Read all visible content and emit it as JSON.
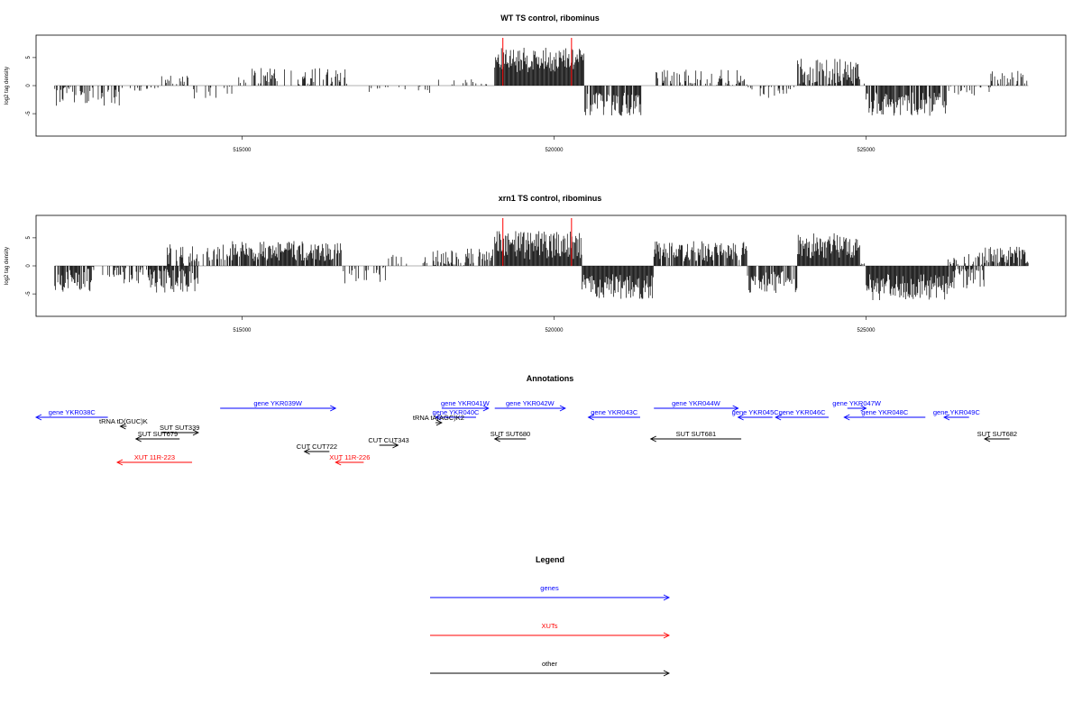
{
  "colors": {
    "gene": "#0000ff",
    "xut": "#ff0000",
    "other": "#000000",
    "marker": "#ff0000",
    "baseline": "#999999"
  },
  "chart_data": [
    {
      "type": "bar",
      "title": "WT TS control, ribominus",
      "ylabel": "log2 tag density",
      "xlim": [
        511700,
        528200
      ],
      "ylim": [
        -9,
        9
      ],
      "xticks": [
        515000,
        520000,
        525000
      ],
      "xtick_labels": [
        "515000",
        "520000",
        "525000"
      ],
      "yticks": [
        -5,
        0,
        5
      ],
      "ytick_labels": [
        "-5",
        "0",
        "5"
      ],
      "markers": [
        519180,
        520280
      ],
      "segments": [
        {
          "start": 512000,
          "end": 513100,
          "mean": -1.8,
          "amp": 1.4,
          "density": 0.35
        },
        {
          "start": 513100,
          "end": 513700,
          "mean": -0.4,
          "amp": 0.5,
          "density": 0.25
        },
        {
          "start": 513700,
          "end": 514200,
          "mean": 0.9,
          "amp": 0.7,
          "density": 0.3
        },
        {
          "start": 514200,
          "end": 514900,
          "mean": -1.0,
          "amp": 1.0,
          "density": 0.2
        },
        {
          "start": 514900,
          "end": 516700,
          "mean": 1.6,
          "amp": 1.2,
          "density": 0.35
        },
        {
          "start": 516700,
          "end": 518100,
          "mean": -0.5,
          "amp": 1.0,
          "density": 0.12
        },
        {
          "start": 518100,
          "end": 518800,
          "mean": 0.5,
          "amp": 0.6,
          "density": 0.12
        },
        {
          "start": 518800,
          "end": 519050,
          "mean": 0.3,
          "amp": 0.4,
          "density": 0.15
        },
        {
          "start": 519050,
          "end": 520480,
          "mean": 4.6,
          "amp": 1.7,
          "density": 1.0
        },
        {
          "start": 520480,
          "end": 521400,
          "mean": -3.3,
          "amp": 1.6,
          "density": 0.9
        },
        {
          "start": 521400,
          "end": 521600,
          "mean": 0.2,
          "amp": 0.4,
          "density": 0.15
        },
        {
          "start": 521600,
          "end": 523100,
          "mean": 1.3,
          "amp": 1.2,
          "density": 0.45
        },
        {
          "start": 523100,
          "end": 523900,
          "mean": -0.9,
          "amp": 1.0,
          "density": 0.3
        },
        {
          "start": 523900,
          "end": 524900,
          "mean": 2.4,
          "amp": 1.9,
          "density": 0.8
        },
        {
          "start": 524900,
          "end": 525000,
          "mean": 0.2,
          "amp": 0.3,
          "density": 0.2
        },
        {
          "start": 525000,
          "end": 526300,
          "mean": -3.3,
          "amp": 1.6,
          "density": 0.85
        },
        {
          "start": 526300,
          "end": 527000,
          "mean": -0.7,
          "amp": 0.8,
          "density": 0.3
        },
        {
          "start": 527000,
          "end": 527600,
          "mean": 1.4,
          "amp": 1.0,
          "density": 0.5
        }
      ]
    },
    {
      "type": "bar",
      "title": "xrn1 TS control, ribominus",
      "ylabel": "log2 tag density",
      "xlim": [
        511700,
        528200
      ],
      "ylim": [
        -9,
        9
      ],
      "xticks": [
        515000,
        520000,
        525000
      ],
      "xtick_labels": [
        "515000",
        "520000",
        "525000"
      ],
      "yticks": [
        -5,
        0,
        5
      ],
      "ytick_labels": [
        "-5",
        "0",
        "5"
      ],
      "markers": [
        519180,
        520280
      ],
      "segments": [
        {
          "start": 512000,
          "end": 512600,
          "mean": -2.6,
          "amp": 1.6,
          "density": 0.8
        },
        {
          "start": 512600,
          "end": 513100,
          "mean": -1.3,
          "amp": 1.0,
          "density": 0.35
        },
        {
          "start": 513100,
          "end": 513500,
          "mean": -1.8,
          "amp": 1.2,
          "density": 0.6
        },
        {
          "start": 513500,
          "end": 514300,
          "mean": -2.6,
          "amp": 1.8,
          "density": 0.9
        },
        {
          "start": 513800,
          "end": 514800,
          "mean": 1.9,
          "amp": 1.5,
          "density": 0.45
        },
        {
          "start": 514800,
          "end": 516600,
          "mean": 2.6,
          "amp": 1.4,
          "density": 0.9
        },
        {
          "start": 516600,
          "end": 517300,
          "mean": -1.5,
          "amp": 1.3,
          "density": 0.35
        },
        {
          "start": 517300,
          "end": 518000,
          "mean": 0.4,
          "amp": 1.2,
          "density": 0.25
        },
        {
          "start": 518000,
          "end": 518800,
          "mean": 1.0,
          "amp": 1.6,
          "density": 0.4
        },
        {
          "start": 518800,
          "end": 519050,
          "mean": 1.5,
          "amp": 1.2,
          "density": 0.5
        },
        {
          "start": 519050,
          "end": 520450,
          "mean": 3.7,
          "amp": 2.0,
          "density": 1.0
        },
        {
          "start": 520450,
          "end": 521600,
          "mean": -3.7,
          "amp": 1.7,
          "density": 1.0
        },
        {
          "start": 521600,
          "end": 523100,
          "mean": 2.6,
          "amp": 1.4,
          "density": 0.85
        },
        {
          "start": 523100,
          "end": 523900,
          "mean": -2.9,
          "amp": 1.5,
          "density": 0.8
        },
        {
          "start": 523900,
          "end": 524900,
          "mean": 3.6,
          "amp": 1.7,
          "density": 1.0
        },
        {
          "start": 524900,
          "end": 525000,
          "mean": 0.2,
          "amp": 0.3,
          "density": 0.2
        },
        {
          "start": 525000,
          "end": 526300,
          "mean": -3.8,
          "amp": 1.8,
          "density": 1.0
        },
        {
          "start": 526300,
          "end": 526900,
          "mean": -2.2,
          "amp": 1.4,
          "density": 0.8
        },
        {
          "start": 526300,
          "end": 526900,
          "mean": 1.4,
          "amp": 1.0,
          "density": 0.4
        },
        {
          "start": 526900,
          "end": 527600,
          "mean": 1.9,
          "amp": 1.2,
          "density": 0.85
        }
      ]
    }
  ],
  "annotations": {
    "title": "Annotations",
    "items": [
      {
        "label": "gene YKR038C",
        "type": "gene",
        "start": 511700,
        "end": 512850,
        "strand": "-",
        "row": 0
      },
      {
        "label": "gene YKR039W",
        "type": "gene",
        "start": 514650,
        "end": 516500,
        "strand": "+",
        "row": -1
      },
      {
        "label": "gene YKR040C",
        "type": "gene",
        "start": 518100,
        "end": 518750,
        "strand": "-",
        "row": 0
      },
      {
        "label": "gene YKR041W",
        "type": "gene",
        "start": 518200,
        "end": 518950,
        "strand": "+",
        "row": -1
      },
      {
        "label": "gene YKR042W",
        "type": "gene",
        "start": 519050,
        "end": 520180,
        "strand": "+",
        "row": -1
      },
      {
        "label": "gene YKR043C",
        "type": "gene",
        "start": 520550,
        "end": 521380,
        "strand": "-",
        "row": 0
      },
      {
        "label": "gene YKR044W",
        "type": "gene",
        "start": 521600,
        "end": 522950,
        "strand": "+",
        "row": -1
      },
      {
        "label": "gene YKR045C",
        "type": "gene",
        "start": 522950,
        "end": 523500,
        "strand": "-",
        "row": 0
      },
      {
        "label": "gene YKR046C",
        "type": "gene",
        "start": 523550,
        "end": 524400,
        "strand": "-",
        "row": 0
      },
      {
        "label": "gene YKR047W",
        "type": "gene",
        "start": 524700,
        "end": 525000,
        "strand": "+",
        "row": -1
      },
      {
        "label": "gene YKR048C",
        "type": "gene",
        "start": 524650,
        "end": 525950,
        "strand": "-",
        "row": 0
      },
      {
        "label": "gene YKR049C",
        "type": "gene",
        "start": 526250,
        "end": 526650,
        "strand": "-",
        "row": 0
      },
      {
        "label": "tRNA tD(GUC)K",
        "type": "other",
        "start": 513050,
        "end": 513150,
        "strand": "-",
        "row": 1
      },
      {
        "label": "tRNA tA(AGC)K2",
        "type": "other",
        "start": 518100,
        "end": 518200,
        "strand": "+",
        "row": 0.6
      },
      {
        "label": "SUT SUT339",
        "type": "other",
        "start": 513700,
        "end": 514300,
        "strand": "+",
        "row": 1.7
      },
      {
        "label": "SUT SUT679",
        "type": "other",
        "start": 513300,
        "end": 514000,
        "strand": "-",
        "row": 2.4
      },
      {
        "label": "SUT SUT680",
        "type": "other",
        "start": 519050,
        "end": 519550,
        "strand": "-",
        "row": 2.4
      },
      {
        "label": "SUT SUT681",
        "type": "other",
        "start": 521550,
        "end": 523000,
        "strand": "-",
        "row": 2.4
      },
      {
        "label": "SUT SUT682",
        "type": "other",
        "start": 526900,
        "end": 527300,
        "strand": "-",
        "row": 2.4
      },
      {
        "label": "CUT CUT343",
        "type": "other",
        "start": 517200,
        "end": 517500,
        "strand": "+",
        "row": 3.1
      },
      {
        "label": "CUT CUT722",
        "type": "other",
        "start": 516000,
        "end": 516400,
        "strand": "-",
        "row": 3.8
      },
      {
        "label": "XUT 11R-223",
        "type": "xut",
        "start": 513000,
        "end": 514200,
        "strand": "-",
        "row": 5
      },
      {
        "label": "XUT 11R-226",
        "type": "xut",
        "start": 516500,
        "end": 516950,
        "strand": "-",
        "row": 5
      }
    ]
  },
  "legend": {
    "title": "Legend",
    "items": [
      {
        "label": "genes",
        "type": "gene"
      },
      {
        "label": "XUTs",
        "type": "xut"
      },
      {
        "label": "other",
        "type": "other"
      }
    ]
  }
}
